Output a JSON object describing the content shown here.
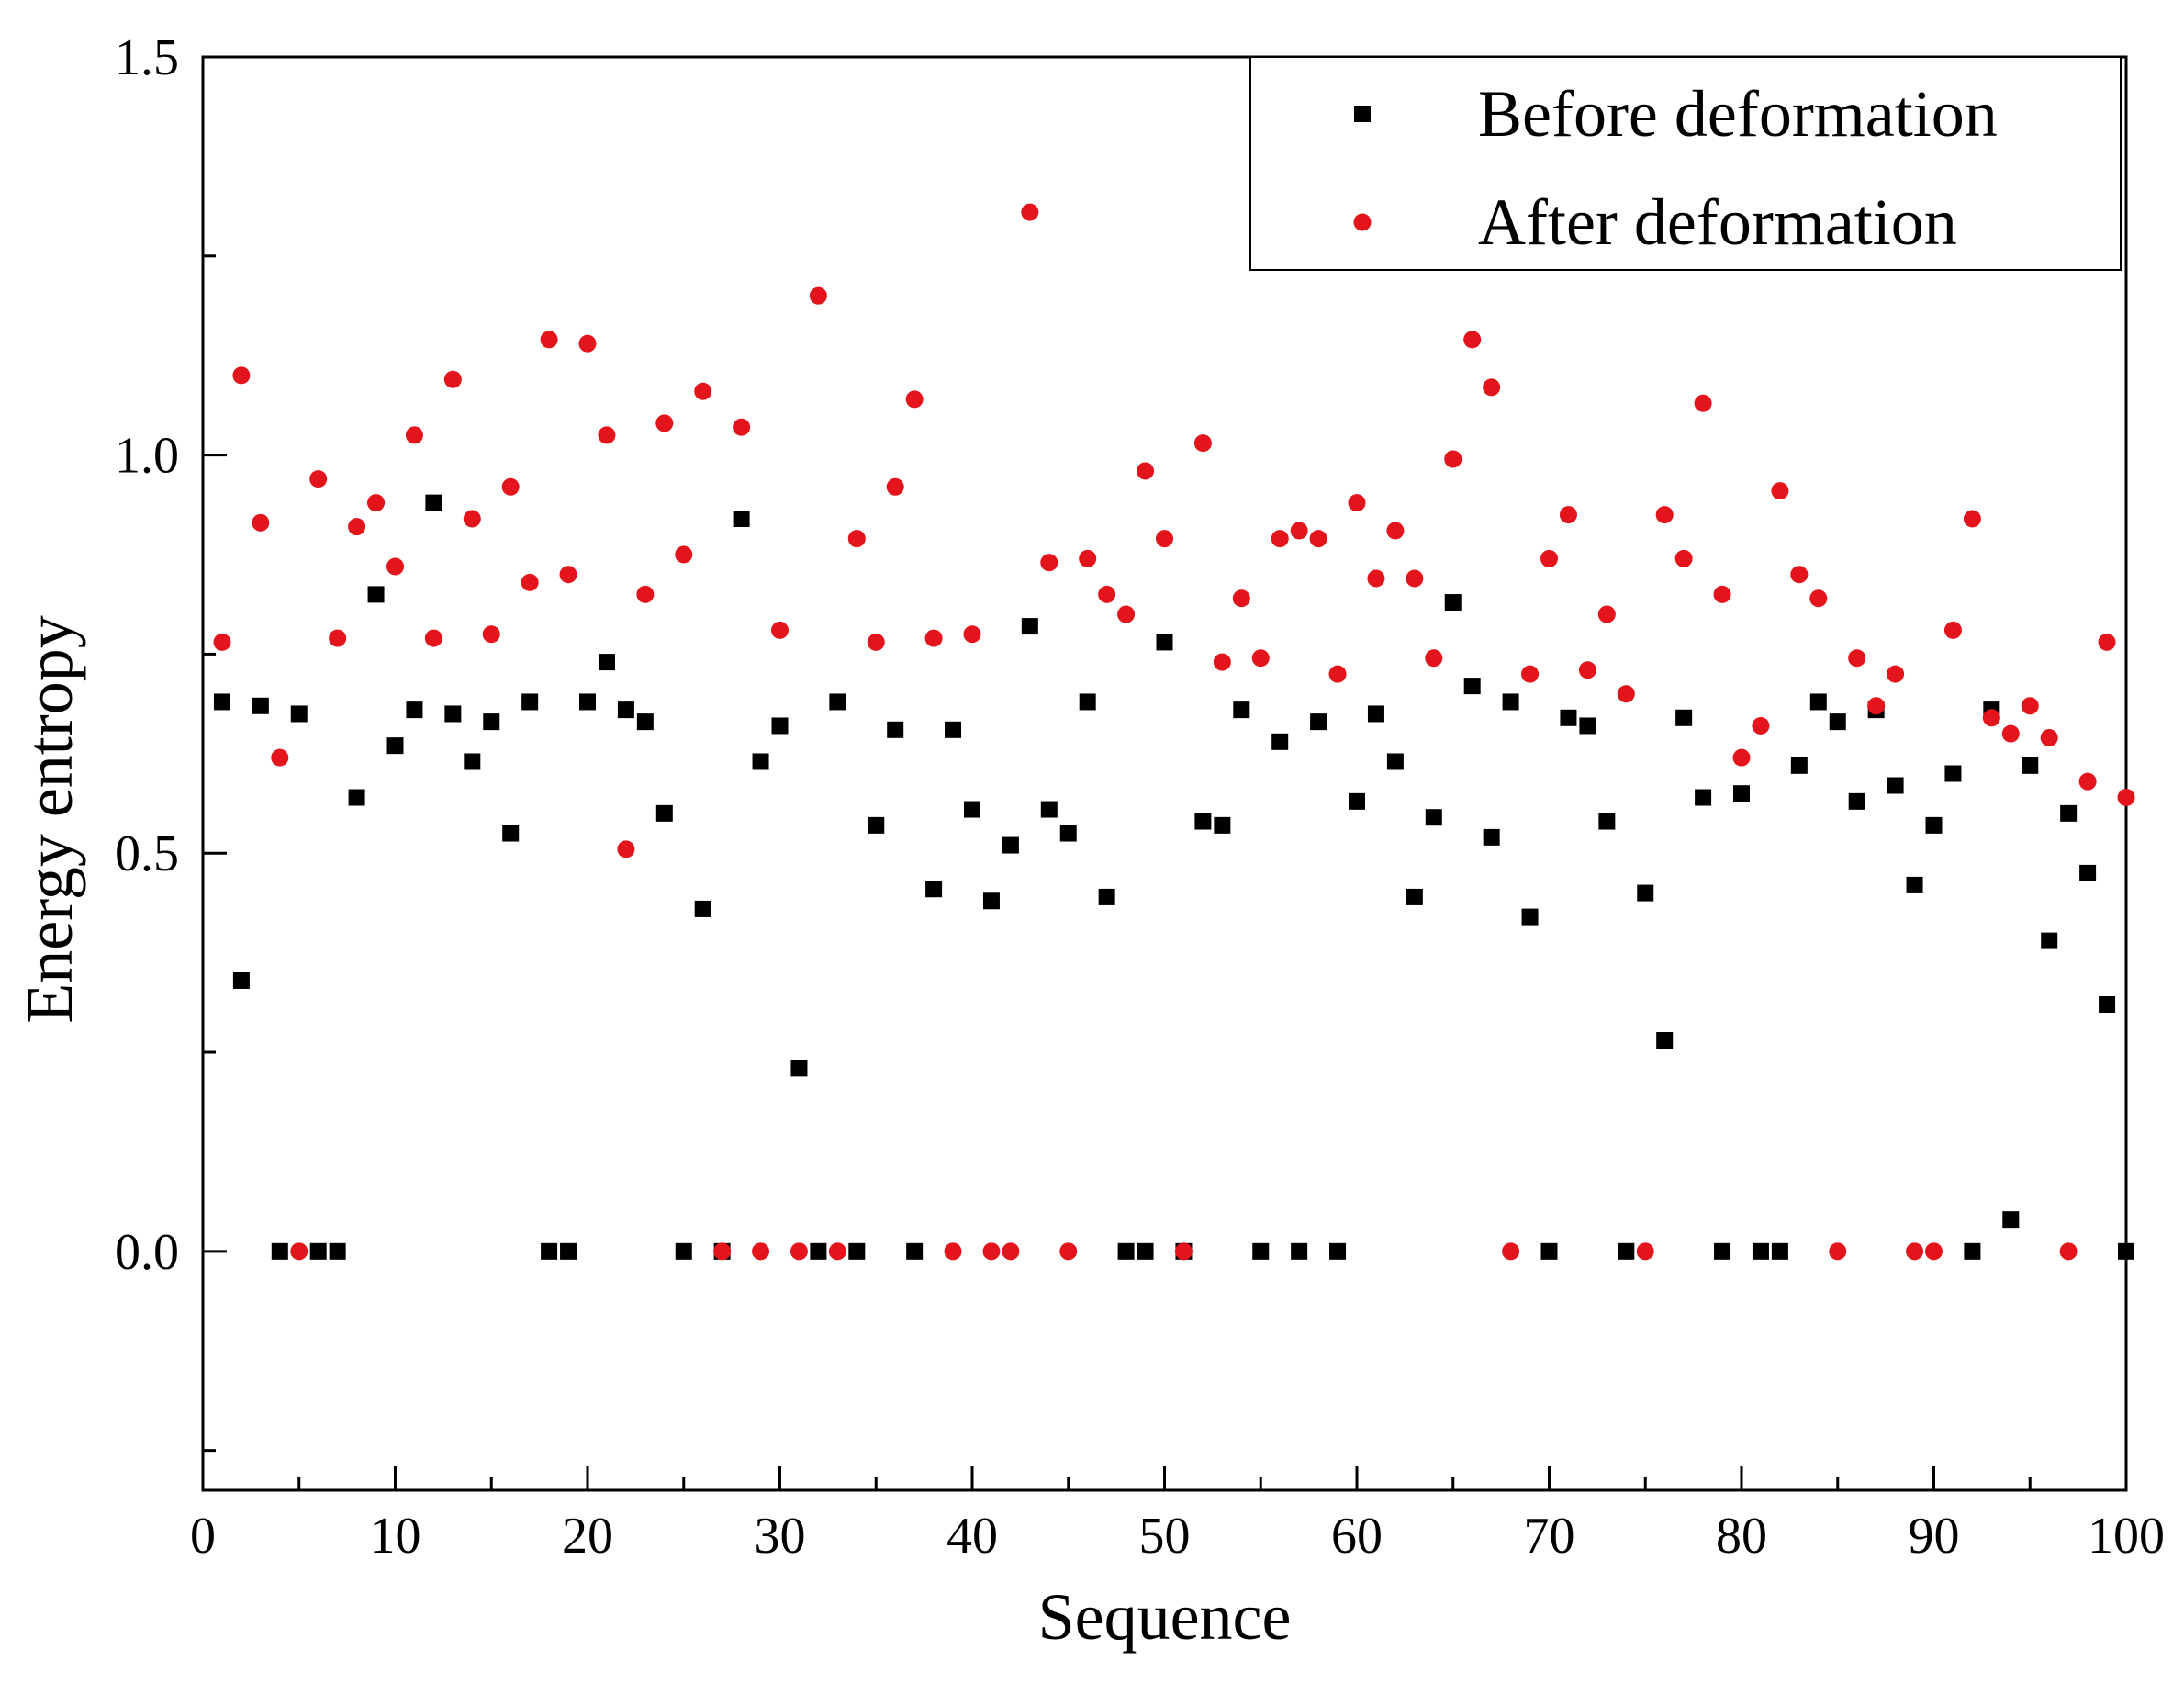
{
  "chart_data": {
    "type": "scatter",
    "title": "",
    "xlabel": "Sequence",
    "ylabel": "Energy entropy",
    "xlim": [
      0,
      100
    ],
    "ylim": [
      -0.3,
      1.5
    ],
    "x_ticks": [
      "0",
      "10",
      "20",
      "30",
      "40",
      "50",
      "60",
      "70",
      "80",
      "90",
      "100"
    ],
    "y_ticks": [
      "0.0",
      "0.5",
      "1.0",
      "1.5"
    ],
    "grid": false,
    "legend_position": "top-right",
    "series": [
      {
        "name": "Before deformation",
        "marker": "square",
        "color": "#000000",
        "x": [
          1,
          2,
          3,
          4,
          5,
          6,
          7,
          8,
          9,
          10,
          11,
          12,
          13,
          14,
          15,
          16,
          17,
          18,
          19,
          20,
          21,
          22,
          23,
          24,
          25,
          26,
          27,
          28,
          29,
          30,
          31,
          32,
          33,
          34,
          35,
          36,
          37,
          38,
          39,
          40,
          41,
          42,
          43,
          44,
          45,
          46,
          47,
          48,
          49,
          50,
          51,
          52,
          53,
          54,
          55,
          56,
          57,
          58,
          59,
          60,
          61,
          62,
          63,
          64,
          65,
          66,
          67,
          68,
          69,
          70,
          71,
          72,
          73,
          74,
          75,
          76,
          77,
          78,
          79,
          80,
          81,
          82,
          83,
          84,
          85,
          86,
          87,
          88,
          89,
          90,
          91,
          92,
          93,
          94,
          95,
          96,
          97,
          98,
          99,
          100
        ],
        "y": [
          0.69,
          0.34,
          0.685,
          0.0,
          0.675,
          0.0,
          0.0,
          0.57,
          0.825,
          0.635,
          0.68,
          0.94,
          0.675,
          0.615,
          0.665,
          0.525,
          0.69,
          0.0,
          0.0,
          0.69,
          0.74,
          0.68,
          0.665,
          0.55,
          0.0,
          0.43,
          0.0,
          0.92,
          0.615,
          0.66,
          0.23,
          0.0,
          0.69,
          0.0,
          0.535,
          0.655,
          0.0,
          0.455,
          0.655,
          0.555,
          0.44,
          0.51,
          0.785,
          0.555,
          0.525,
          0.69,
          0.445,
          0.0,
          0.0,
          0.765,
          0.0,
          0.54,
          0.535,
          0.68,
          0.0,
          0.64,
          0.0,
          0.665,
          0.0,
          0.565,
          0.675,
          0.615,
          0.445,
          0.545,
          0.815,
          0.71,
          0.52,
          0.69,
          0.42,
          0.0,
          0.67,
          0.66,
          0.54,
          0.0,
          0.45,
          0.265,
          0.67,
          0.57,
          0.0,
          0.575,
          0.0,
          0.0,
          0.61,
          0.69,
          0.665,
          0.565,
          0.68,
          0.585,
          0.46,
          0.535,
          0.6,
          0.0,
          0.68,
          0.04,
          0.61,
          0.39,
          0.55,
          0.475,
          0.31,
          0.0
        ]
      },
      {
        "name": "After deformation",
        "marker": "circle",
        "color": "#e3141b",
        "x": [
          1,
          2,
          3,
          4,
          5,
          6,
          7,
          8,
          9,
          10,
          11,
          12,
          13,
          14,
          15,
          16,
          17,
          18,
          19,
          20,
          21,
          22,
          23,
          24,
          25,
          26,
          27,
          28,
          29,
          30,
          31,
          32,
          33,
          34,
          35,
          36,
          37,
          38,
          39,
          40,
          41,
          42,
          43,
          44,
          45,
          46,
          47,
          48,
          49,
          50,
          51,
          52,
          53,
          54,
          55,
          56,
          57,
          58,
          59,
          60,
          61,
          62,
          63,
          64,
          65,
          66,
          67,
          68,
          69,
          70,
          71,
          72,
          73,
          74,
          75,
          76,
          77,
          78,
          79,
          80,
          81,
          82,
          83,
          84,
          85,
          86,
          87,
          88,
          89,
          90,
          91,
          92,
          93,
          94,
          95,
          96,
          97,
          98,
          99,
          100
        ],
        "y": [
          0.765,
          1.1,
          0.915,
          0.62,
          0.0,
          0.97,
          0.77,
          0.91,
          0.94,
          0.86,
          1.025,
          0.77,
          1.095,
          0.92,
          0.775,
          0.96,
          0.84,
          1.145,
          0.85,
          1.14,
          1.025,
          0.505,
          0.825,
          1.04,
          0.875,
          1.08,
          0.0,
          1.035,
          0.0,
          0.78,
          0.0,
          1.2,
          0.0,
          0.895,
          0.765,
          0.96,
          1.07,
          0.77,
          0.0,
          0.775,
          0.0,
          0.0,
          1.305,
          0.865,
          0.0,
          0.87,
          0.825,
          0.8,
          0.98,
          0.895,
          0.0,
          1.015,
          0.74,
          0.82,
          0.745,
          0.895,
          0.905,
          0.895,
          0.725,
          0.94,
          0.845,
          0.905,
          0.845,
          0.745,
          0.995,
          1.145,
          1.085,
          0.0,
          0.725,
          0.87,
          0.925,
          0.73,
          0.8,
          0.7,
          0.0,
          0.925,
          0.87,
          1.065,
          0.825,
          0.62,
          0.66,
          0.955,
          0.85,
          0.82,
          0.0,
          0.745,
          0.685,
          0.725,
          0.0,
          0.0,
          0.78,
          0.92,
          0.67,
          0.65,
          0.685,
          0.645,
          0.0,
          0.59,
          0.765,
          0.57
        ]
      }
    ]
  }
}
